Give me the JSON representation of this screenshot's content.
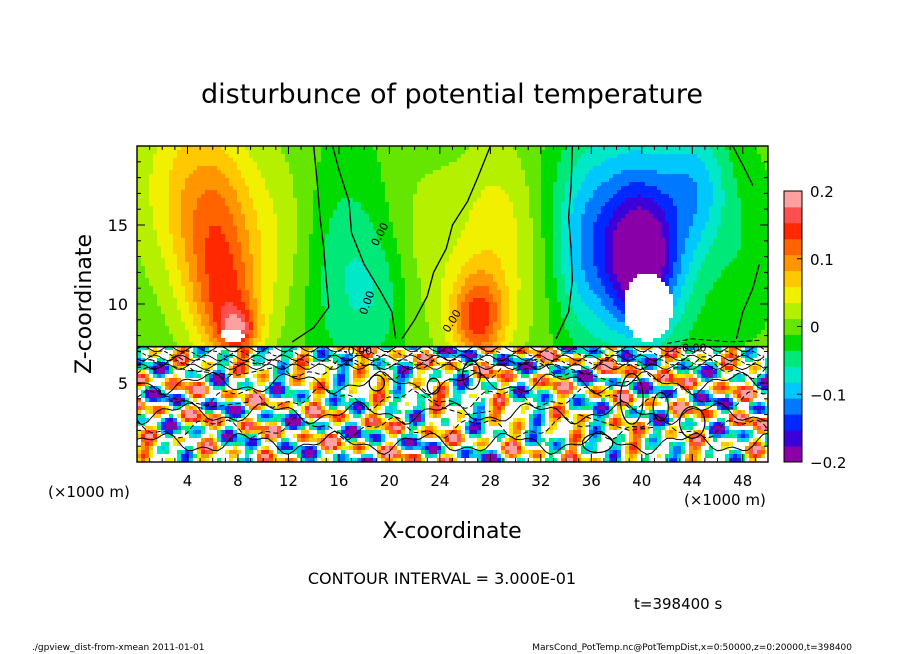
{
  "chart_data": {
    "type": "heatmap",
    "title": "disturbunce of potential temperature",
    "xlabel": "X-coordinate",
    "ylabel": "Z-coordinate",
    "x_unit": "(×1000 m)",
    "x_unit_bottom": "(×1000 m)",
    "xlim": [
      0,
      50
    ],
    "ylim": [
      0,
      20
    ],
    "x_ticks": [
      4,
      8,
      12,
      16,
      20,
      24,
      28,
      32,
      36,
      40,
      44,
      48
    ],
    "y_ticks": [
      5,
      10,
      15
    ],
    "colorbar": {
      "ticks": [
        "0.2",
        "0.1",
        "0",
        "−0.1",
        "−0.2"
      ],
      "tick_values": [
        0.2,
        0.1,
        0,
        -0.1,
        -0.2
      ],
      "range": [
        -0.2,
        0.2
      ],
      "colors": [
        "#8a00a8",
        "#3c00d8",
        "#0028ff",
        "#0078ff",
        "#00c8ff",
        "#00e8c8",
        "#00e878",
        "#00dc00",
        "#64e600",
        "#b4f000",
        "#f0f000",
        "#ffc800",
        "#ff9600",
        "#ff6400",
        "#ff2800",
        "#ff5050",
        "#ffa0a0"
      ]
    },
    "contour_labels": [
      "0.00",
      "0.00",
      "-0.00",
      "0.00",
      "-0.00"
    ],
    "contour_interval_text": "CONTOUR INTERVAL = 3.000E-01",
    "time_text": "t=398400 s",
    "footer_left": "./gpview_dist-from-xmean  2011-01-01",
    "footer_right": "MarsCond_PotTemp.nc@PotTempDist,x=0:50000,z=0:20000,t=398400",
    "blobs": [
      {
        "x": 4.5,
        "z": 17.5,
        "rx": 4.5,
        "rz": 6.0,
        "v": 0.07
      },
      {
        "x": 6.5,
        "z": 12.5,
        "rx": 3.0,
        "rz": 5.5,
        "v": 0.1
      },
      {
        "x": 7.5,
        "z": 9.5,
        "rx": 2.5,
        "rz": 3.0,
        "v": 0.06
      },
      {
        "x": 8.0,
        "z": 8.3,
        "rx": 1.5,
        "rz": 1.3,
        "v": 0.1
      },
      {
        "x": 11.5,
        "z": 14.0,
        "rx": 3.0,
        "rz": 6.0,
        "v": 0.03
      },
      {
        "x": 16.5,
        "z": 12.0,
        "rx": 3.5,
        "rz": 7.0,
        "v": -0.05
      },
      {
        "x": 19.5,
        "z": 10.5,
        "rx": 2.5,
        "rz": 4.0,
        "v": -0.03
      },
      {
        "x": 23.0,
        "z": 13.5,
        "rx": 3.5,
        "rz": 6.0,
        "v": 0.03
      },
      {
        "x": 27.0,
        "z": 9.0,
        "rx": 2.2,
        "rz": 3.0,
        "v": 0.13
      },
      {
        "x": 28.5,
        "z": 14.5,
        "rx": 3.0,
        "rz": 6.0,
        "v": 0.05
      },
      {
        "x": 32.0,
        "z": 11.5,
        "rx": 2.5,
        "rz": 6.0,
        "v": 0.02
      },
      {
        "x": 35.0,
        "z": 13.5,
        "rx": 3.0,
        "rz": 6.0,
        "v": -0.05
      },
      {
        "x": 39.5,
        "z": 14.5,
        "rx": 5.0,
        "rz": 7.0,
        "v": -0.12
      },
      {
        "x": 40.0,
        "z": 12.5,
        "rx": 2.5,
        "rz": 4.0,
        "v": -0.12
      },
      {
        "x": 44.5,
        "z": 17.5,
        "rx": 2.5,
        "rz": 4.0,
        "v": -0.06
      },
      {
        "x": 48.5,
        "z": 13.5,
        "rx": 2.5,
        "rz": 5.0,
        "v": -0.02
      }
    ],
    "white_regions": [
      {
        "x": 40.5,
        "z": 9.8,
        "rx": 2.5,
        "rz": 2.8
      },
      {
        "x": 7.5,
        "z": 8.0,
        "rx": 1.2,
        "rz": 0.5
      }
    ],
    "solid_contours": [
      [
        [
          12.3,
          7.6
        ],
        [
          14.0,
          8.5
        ],
        [
          15.2,
          9.8
        ],
        [
          15.0,
          11.5
        ],
        [
          14.8,
          13.5
        ],
        [
          14.5,
          15.5
        ],
        [
          14.3,
          17.5
        ],
        [
          14.0,
          20.0
        ]
      ],
      [
        [
          20.5,
          7.8
        ],
        [
          20.2,
          9.5
        ],
        [
          19.3,
          10.8
        ],
        [
          18.0,
          12.5
        ],
        [
          17.0,
          14.5
        ],
        [
          16.8,
          16.5
        ],
        [
          16.0,
          18.5
        ],
        [
          15.5,
          20.0
        ]
      ],
      [
        [
          21.0,
          7.8
        ],
        [
          22.0,
          9.0
        ],
        [
          23.0,
          10.5
        ],
        [
          23.5,
          12.0
        ],
        [
          24.5,
          13.5
        ],
        [
          25.0,
          15.0
        ],
        [
          26.2,
          16.5
        ],
        [
          27.0,
          18.0
        ],
        [
          28.0,
          20.0
        ]
      ],
      [
        [
          33.2,
          7.8
        ],
        [
          34.2,
          9.5
        ],
        [
          34.5,
          11.5
        ],
        [
          34.4,
          13.5
        ],
        [
          34.2,
          15.5
        ],
        [
          34.4,
          17.5
        ],
        [
          34.5,
          20.0
        ]
      ],
      [
        [
          47.5,
          7.8
        ],
        [
          48.0,
          9.5
        ],
        [
          48.8,
          11.0
        ],
        [
          49.3,
          12.5
        ]
      ],
      [
        [
          48.8,
          17.5
        ],
        [
          48.0,
          18.8
        ],
        [
          47.2,
          20.0
        ]
      ]
    ],
    "dashed_contours": [
      [
        [
          1.0,
          6.5
        ],
        [
          4.0,
          5.8
        ],
        [
          8.0,
          5.5
        ],
        [
          11.0,
          6.0
        ]
      ],
      [
        [
          22.0,
          4.5
        ],
        [
          24.0,
          3.5
        ],
        [
          26.0,
          3.0
        ],
        [
          28.0,
          3.2
        ]
      ],
      [
        [
          30.0,
          5.8
        ],
        [
          33.0,
          6.2
        ],
        [
          36.0,
          5.5
        ],
        [
          38.0,
          5.0
        ],
        [
          40.0,
          5.2
        ]
      ],
      [
        [
          35.0,
          3.0
        ],
        [
          37.0,
          2.5
        ],
        [
          39.0,
          2.0
        ],
        [
          41.0,
          2.2
        ]
      ],
      [
        [
          42.0,
          7.5
        ],
        [
          44.0,
          7.8
        ],
        [
          47.0,
          7.6
        ],
        [
          49.5,
          7.7
        ]
      ],
      [
        [
          1.0,
          4.5
        ],
        [
          3.0,
          4.0
        ],
        [
          6.0,
          3.5
        ],
        [
          9.0,
          3.8
        ]
      ]
    ],
    "blob_contours": [
      {
        "x": 26.5,
        "z": 5.5,
        "rx": 0.7,
        "rz": 0.9
      },
      {
        "x": 39.2,
        "z": 4.0,
        "rx": 0.9,
        "rz": 1.6
      },
      {
        "x": 41.5,
        "z": 3.5,
        "rx": 0.6,
        "rz": 0.9
      },
      {
        "x": 44.0,
        "z": 2.5,
        "rx": 1.0,
        "rz": 1.0
      },
      {
        "x": 36.5,
        "z": 1.2,
        "rx": 1.2,
        "rz": 0.6
      },
      {
        "x": 23.5,
        "z": 4.8,
        "rx": 0.5,
        "rz": 0.5
      },
      {
        "x": 19.0,
        "z": 5.0,
        "rx": 0.6,
        "rz": 0.5
      }
    ],
    "boundary_z": 7.3,
    "lower_noise_seed": 4
  }
}
